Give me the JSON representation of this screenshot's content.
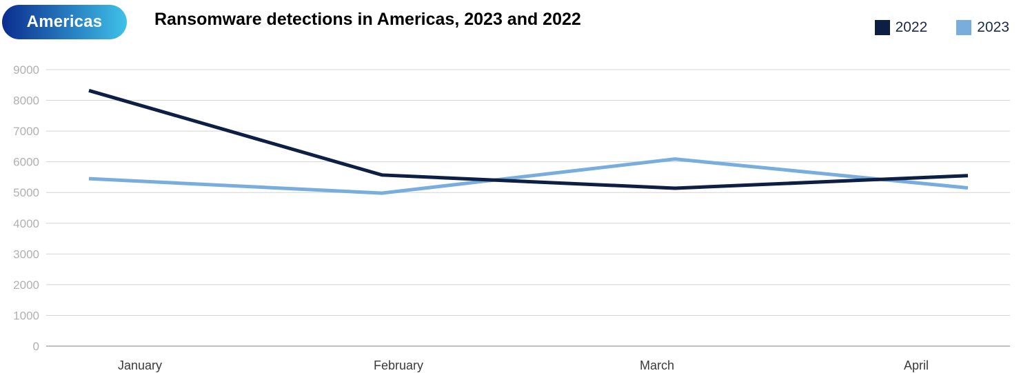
{
  "region_label": "Americas",
  "colors": {
    "pill_start": "#0b2d8f",
    "pill_end": "#3fc1e8",
    "series_2022": "#0d1f45",
    "series_2023": "#78addd",
    "grid": "#d4d4d4",
    "axis": "#9a9a9a",
    "tick_text": "#b0b0b0",
    "category_text": "#3a3a3a"
  },
  "chart_data": {
    "type": "line",
    "title": "Ransomware detections in Americas, 2023 and 2022",
    "categories": [
      "January",
      "February",
      "March",
      "April"
    ],
    "y_ticks": [
      "0",
      "1000",
      "2000",
      "3000",
      "4000",
      "5000",
      "6000",
      "7000",
      "8000",
      "9000"
    ],
    "ylim": [
      0,
      9000
    ],
    "grid": true,
    "legend_position": "top-right",
    "series": [
      {
        "name": "2022",
        "color": "#0d1f45",
        "values": [
          8320,
          5570,
          5140,
          5550
        ]
      },
      {
        "name": "2023",
        "color": "#78addd",
        "values": [
          5450,
          4980,
          6090,
          5150
        ]
      }
    ]
  }
}
